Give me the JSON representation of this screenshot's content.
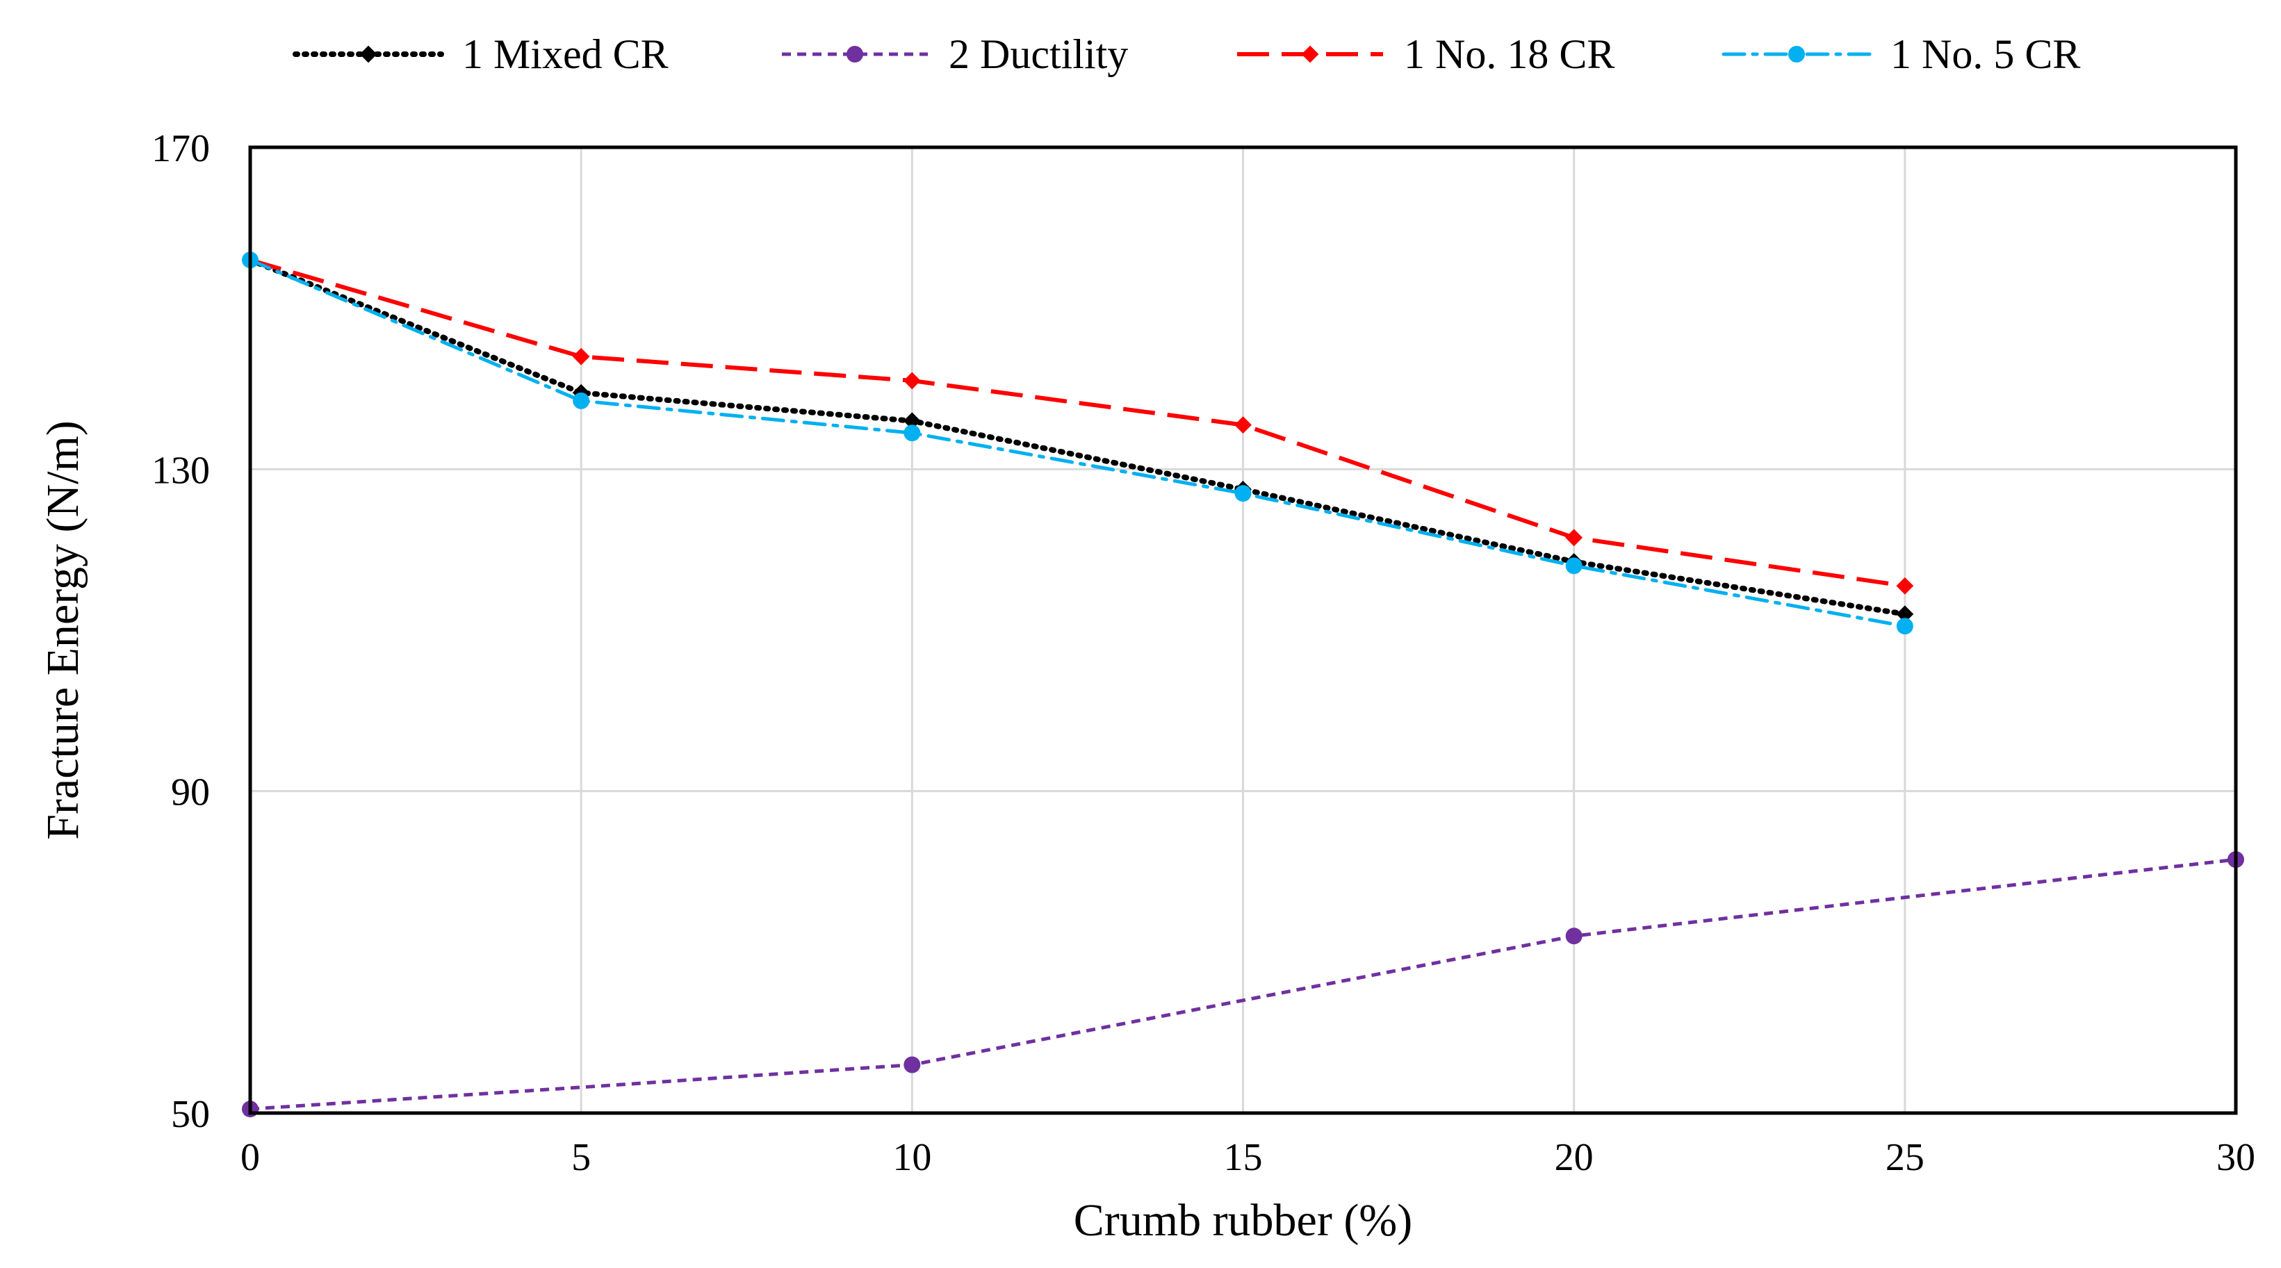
{
  "chart_data": {
    "type": "line",
    "title": "",
    "xlabel": "Crumb rubber (%)",
    "ylabel": "Fracture Energy (N/m)",
    "xlim": [
      0,
      30
    ],
    "ylim": [
      50,
      170
    ],
    "xticks": [
      0,
      5,
      10,
      15,
      20,
      25,
      30
    ],
    "yticks": [
      50,
      90,
      130,
      170
    ],
    "xtick_labels": [
      "0",
      "5",
      "10",
      "15",
      "20",
      "25",
      "30"
    ],
    "ytick_labels": [
      "50",
      "90",
      "130",
      "170"
    ],
    "grid": true,
    "legend_position": "top",
    "series": [
      {
        "name": "1 Mixed CR",
        "color": "#000000",
        "dash": "dotted",
        "marker": "diamond",
        "x": [
          0,
          5,
          10,
          15,
          20,
          25
        ],
        "y": [
          156,
          139.5,
          136,
          127.5,
          118.5,
          112
        ]
      },
      {
        "name": "2 Ductility",
        "color": "#7030A0",
        "dash": "dashed",
        "marker": "circle",
        "markers_at": [
          0,
          10,
          20,
          30
        ],
        "x": [
          0,
          5,
          10,
          15,
          20,
          25,
          30
        ],
        "y": [
          50.5,
          53.2,
          56,
          64,
          72,
          76.8,
          81.5
        ]
      },
      {
        "name": "1 No. 18 CR",
        "color": "#FF0000",
        "dash": "longdash",
        "marker": "diamond",
        "x": [
          0,
          5,
          10,
          15,
          20,
          25
        ],
        "y": [
          156,
          144,
          141,
          135.5,
          121.5,
          115.5
        ]
      },
      {
        "name": "1 No. 5 CR",
        "color": "#00B0F0",
        "dash": "dashdot",
        "marker": "circle",
        "x": [
          0,
          5,
          10,
          15,
          20,
          25
        ],
        "y": [
          156,
          138.5,
          134.5,
          127,
          118,
          110.5
        ]
      }
    ]
  }
}
